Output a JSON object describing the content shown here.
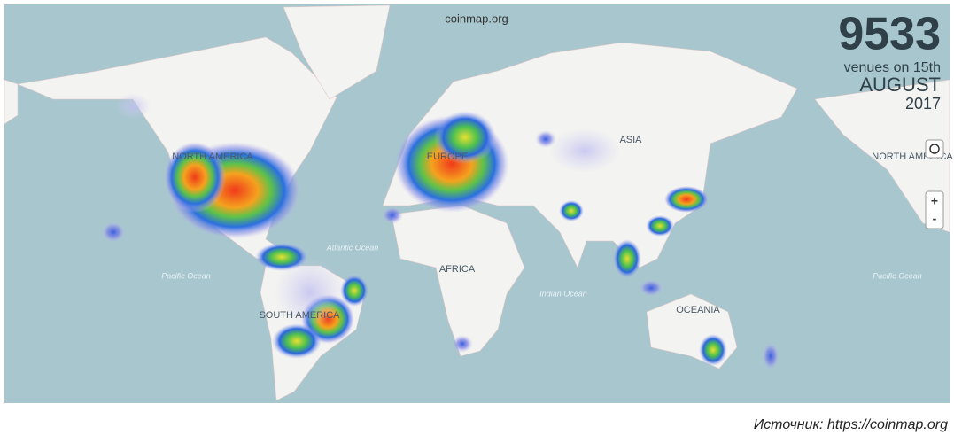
{
  "header": {
    "site": "coinmap.org"
  },
  "counter": {
    "venues": 9533,
    "line1": "venues on 15th",
    "month": "AUGUST",
    "year": "2017"
  },
  "map_labels": {
    "north_america": "NORTH AMERICA",
    "europe": "EUROPE",
    "asia": "ASIA",
    "africa": "AFRICA",
    "south_america": "SOUTH AMERICA",
    "oceania": "OCEANIA",
    "north_america_east": "NORTH AMERICA",
    "atlantic": "Atlantic Ocean",
    "pacific_west": "Pacific Ocean",
    "pacific_east": "Pacific Ocean",
    "indian": "Indian Ocean"
  },
  "controls": {
    "zoom_in": "+",
    "zoom_out": "-"
  },
  "source": "Источник: https://coinmap.org"
}
